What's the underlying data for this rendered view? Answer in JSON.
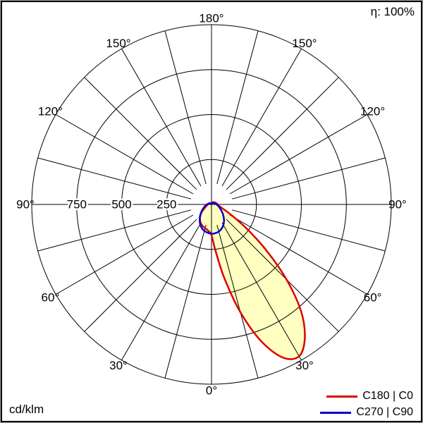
{
  "labels": {
    "efficiency": "η: 100%",
    "unit": "cd/klm"
  },
  "legend": [
    {
      "label": "C180 | C0",
      "color": "#dd0000"
    },
    {
      "label": "C270 | C90",
      "color": "#0000cc"
    }
  ],
  "chart_data": {
    "type": "polar",
    "description": "Luminous intensity distribution curve (polar photometric diagram)",
    "unit": "cd/klm",
    "rmax": 1000,
    "radial_ticks": [
      250,
      500,
      750,
      1000
    ],
    "radial_tick_labels": [
      {
        "value": 250,
        "text": "250"
      },
      {
        "value": 500,
        "text": "500"
      },
      {
        "value": 750,
        "text": "750"
      }
    ],
    "angle_grid_step_deg": 15,
    "angle_label_step_deg": 30,
    "angle_labels": [
      {
        "gamma": 0,
        "text": "0°"
      },
      {
        "gamma": 30,
        "text": "30°"
      },
      {
        "gamma": 60,
        "text": "60°"
      },
      {
        "gamma": 90,
        "text": "90°"
      },
      {
        "gamma": 120,
        "text": "120°"
      },
      {
        "gamma": 150,
        "text": "150°"
      },
      {
        "gamma": 180,
        "text": "180°"
      }
    ],
    "efficiency": "η: 100%",
    "series": [
      {
        "name": "C180 | C0",
        "color": "#dd0000",
        "fill": "#ffffc2",
        "points": [
          [
            -180,
            5
          ],
          [
            -165,
            6
          ],
          [
            -150,
            8
          ],
          [
            -135,
            10
          ],
          [
            -120,
            12
          ],
          [
            -105,
            16
          ],
          [
            -90,
            20
          ],
          [
            -75,
            28
          ],
          [
            -60,
            48
          ],
          [
            -50,
            75
          ],
          [
            -40,
            100
          ],
          [
            -30,
            120
          ],
          [
            -20,
            132
          ],
          [
            -10,
            142
          ],
          [
            -5,
            152
          ],
          [
            0,
            170
          ],
          [
            5,
            260
          ],
          [
            10,
            420
          ],
          [
            15,
            620
          ],
          [
            20,
            810
          ],
          [
            25,
            940
          ],
          [
            30,
            975
          ],
          [
            35,
            905
          ],
          [
            40,
            775
          ],
          [
            45,
            590
          ],
          [
            50,
            400
          ],
          [
            55,
            250
          ],
          [
            60,
            150
          ],
          [
            65,
            95
          ],
          [
            70,
            65
          ],
          [
            75,
            50
          ],
          [
            80,
            42
          ],
          [
            90,
            35
          ],
          [
            105,
            28
          ],
          [
            120,
            22
          ],
          [
            135,
            18
          ],
          [
            150,
            14
          ],
          [
            165,
            11
          ],
          [
            180,
            8
          ]
        ]
      },
      {
        "name": "C270 | C90",
        "color": "#0000cc",
        "fill": "none",
        "points": [
          [
            -180,
            5
          ],
          [
            -150,
            8
          ],
          [
            -120,
            14
          ],
          [
            -90,
            26
          ],
          [
            -75,
            38
          ],
          [
            -60,
            58
          ],
          [
            -50,
            78
          ],
          [
            -40,
            102
          ],
          [
            -30,
            126
          ],
          [
            -20,
            146
          ],
          [
            -10,
            157
          ],
          [
            0,
            163
          ],
          [
            10,
            160
          ],
          [
            20,
            150
          ],
          [
            30,
            132
          ],
          [
            40,
            108
          ],
          [
            50,
            83
          ],
          [
            60,
            61
          ],
          [
            75,
            41
          ],
          [
            90,
            28
          ],
          [
            120,
            15
          ],
          [
            150,
            9
          ],
          [
            180,
            6
          ]
        ]
      }
    ]
  }
}
